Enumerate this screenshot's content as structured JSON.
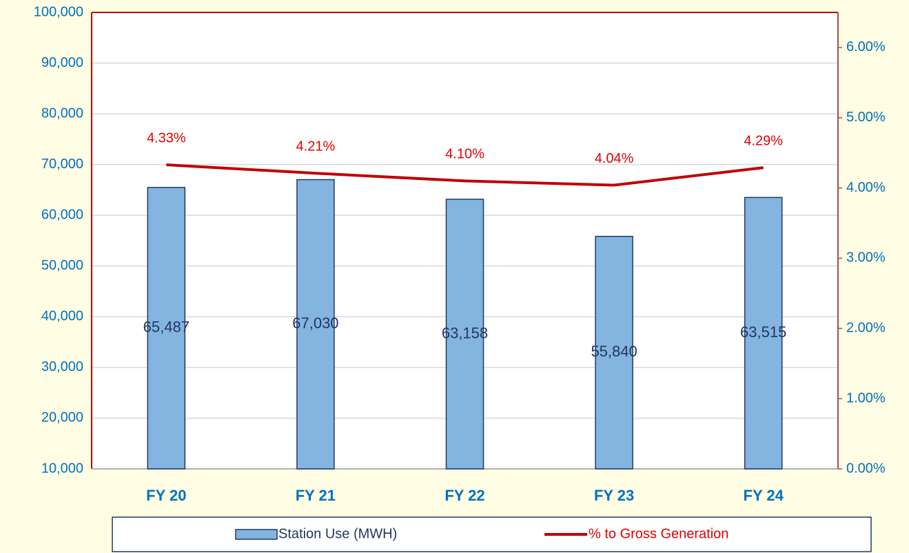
{
  "chart_data": {
    "type": "bar",
    "categories": [
      "FY 20",
      "FY 21",
      "FY 22",
      "FY 23",
      "FY 24"
    ],
    "series": [
      {
        "name": "Station Use (MWH)",
        "type": "bar",
        "color": "#84b4e0",
        "values": [
          65487,
          67030,
          63158,
          55840,
          63515
        ],
        "value_labels": [
          "65,487",
          "67,030",
          "63,158",
          "55,840",
          "63,515"
        ]
      },
      {
        "name": "% to Gross Generation",
        "type": "line",
        "axis": "y2",
        "color": "#c00000",
        "values": [
          4.33,
          4.21,
          4.1,
          4.04,
          4.29
        ],
        "value_labels": [
          "4.33%",
          "4.21%",
          "4.10%",
          "4.04%",
          "4.29%"
        ]
      }
    ],
    "ylim": [
      10000,
      100000
    ],
    "yticks": [
      {
        "value": 10000,
        "label": "10,000"
      },
      {
        "value": 20000,
        "label": "20,000"
      },
      {
        "value": 30000,
        "label": "30,000"
      },
      {
        "value": 40000,
        "label": "40,000"
      },
      {
        "value": 50000,
        "label": "50,000"
      },
      {
        "value": 60000,
        "label": "60,000"
      },
      {
        "value": 70000,
        "label": "70,000"
      },
      {
        "value": 80000,
        "label": "80,000"
      },
      {
        "value": 90000,
        "label": "90,000"
      },
      {
        "value": 100000,
        "label": "100,000"
      }
    ],
    "y2lim": [
      0,
      6.5
    ],
    "y2ticks": [
      {
        "value": 0,
        "label": "0.00%"
      },
      {
        "value": 1,
        "label": "1.00%"
      },
      {
        "value": 2,
        "label": "2.00%"
      },
      {
        "value": 3,
        "label": "3.00%"
      },
      {
        "value": 4,
        "label": "4.00%"
      },
      {
        "value": 5,
        "label": "5.00%"
      },
      {
        "value": 6,
        "label": "6.00%"
      }
    ],
    "grid": true,
    "legend": "bottom"
  }
}
